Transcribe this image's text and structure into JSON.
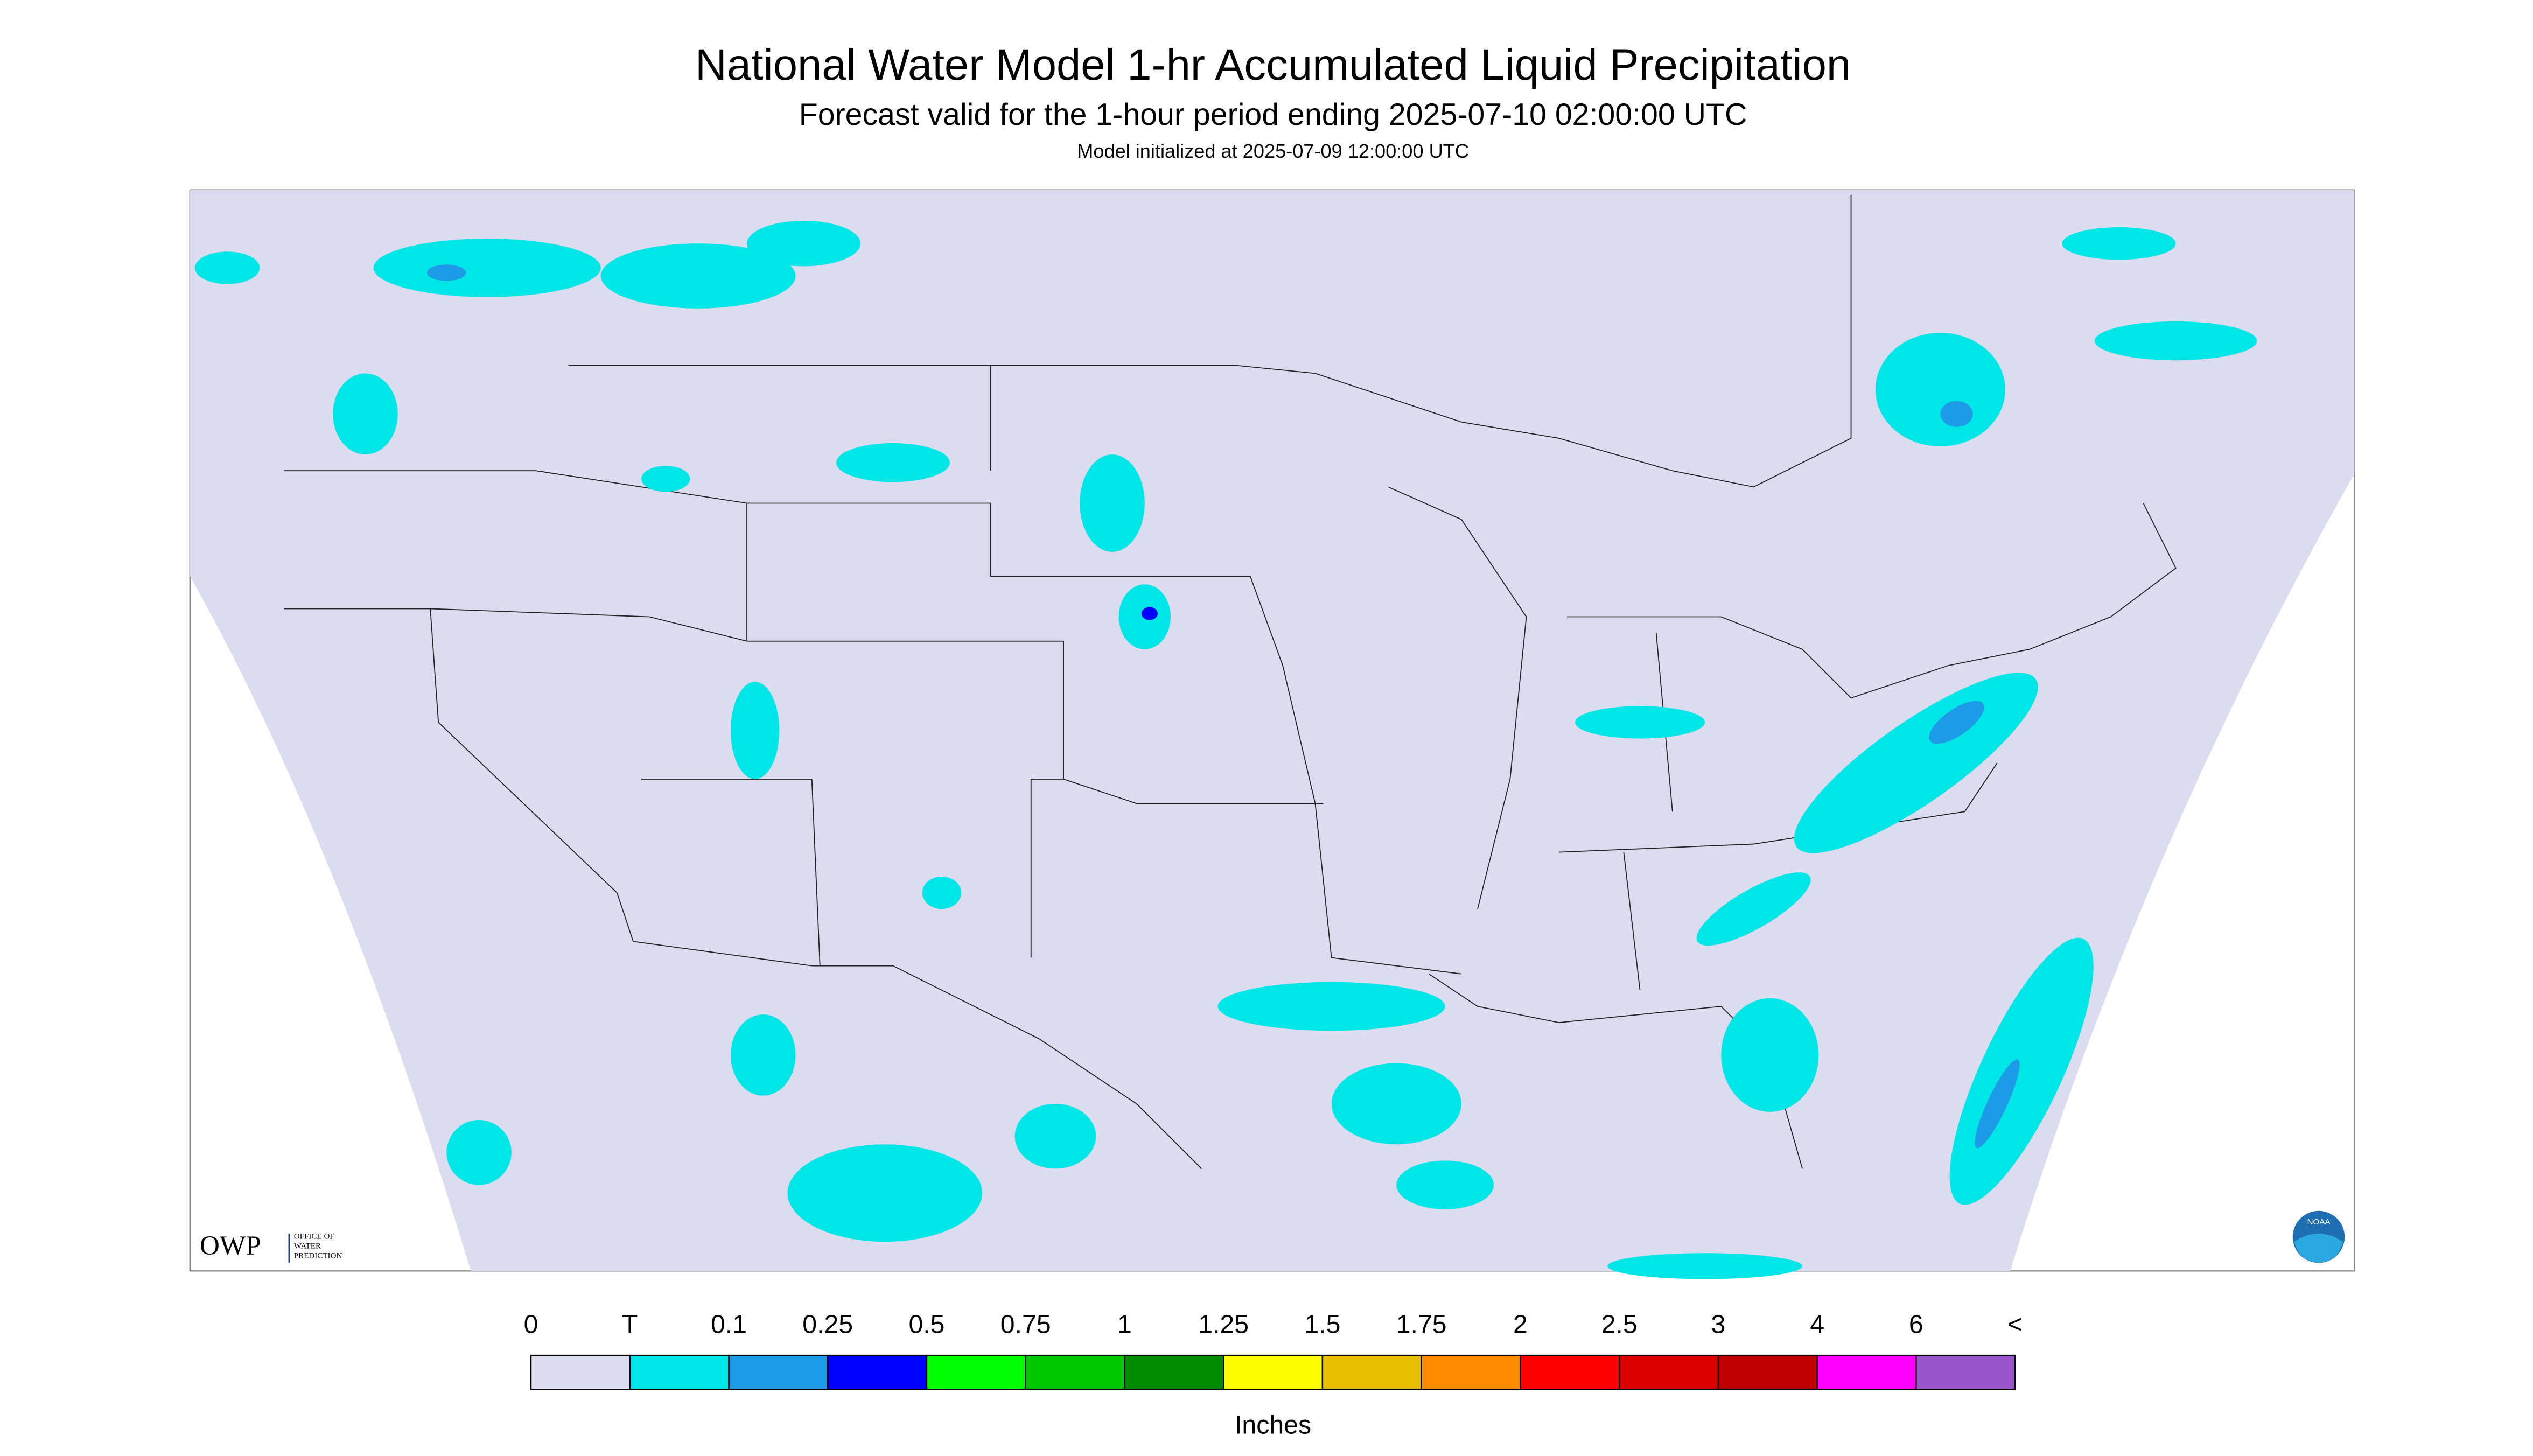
{
  "header": {
    "title": "National Water Model 1-hr Accumulated Liquid Precipitation",
    "subtitle": "Forecast valid for the 1-hour period ending 2025-07-10 02:00:00 UTC",
    "note": "Model initialized at 2025-07-09 12:00:00 UTC"
  },
  "legend": {
    "labels": [
      "0",
      "T",
      "0.1",
      "0.25",
      "0.5",
      "0.75",
      "1",
      "1.25",
      "1.5",
      "1.75",
      "2",
      "2.5",
      "3",
      "4",
      "6",
      "<"
    ],
    "colors": [
      "#dcdcf0",
      "#00e6e6",
      "#1e9be6",
      "#0000ff",
      "#00ff00",
      "#00c800",
      "#008c00",
      "#ffff00",
      "#e6be00",
      "#ff8c00",
      "#ff0000",
      "#dc0000",
      "#be0000",
      "#ff00ff",
      "#9655c8"
    ],
    "units": "Inches"
  },
  "logos": {
    "owp": "OWP",
    "owp_name": [
      "OFFICE OF",
      "WATER",
      "PREDICTION"
    ],
    "noaa": "NOAA"
  }
}
